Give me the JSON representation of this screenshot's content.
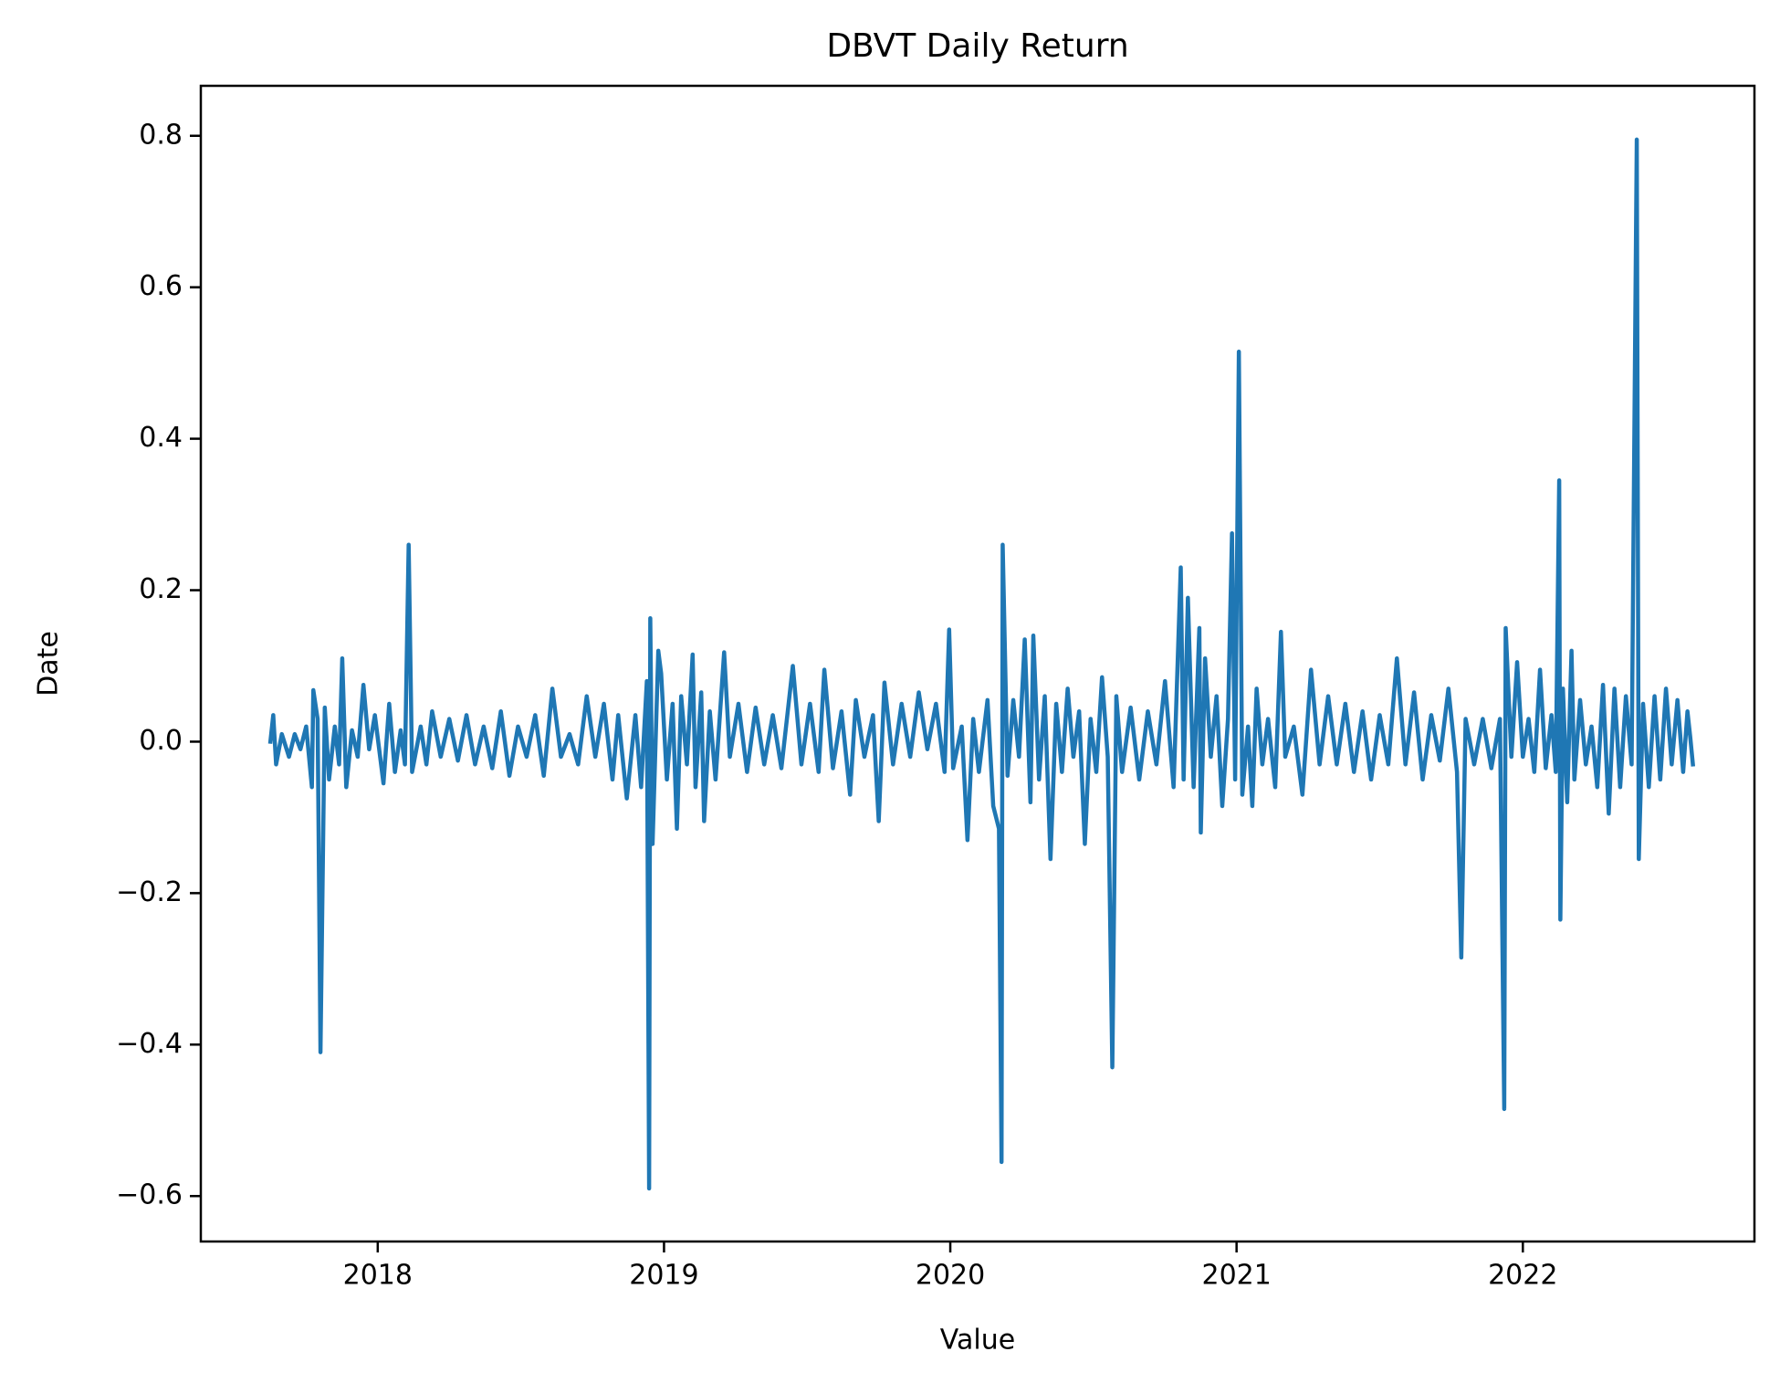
{
  "chart_data": {
    "type": "line",
    "title": "DBVT Daily Return",
    "xlabel": "Value",
    "ylabel": "Date",
    "color": "#1f77b4",
    "xlim": [
      2017.382,
      2022.809
    ],
    "xticks": [
      2018,
      2019,
      2020,
      2021,
      2022
    ],
    "ylim": [
      -0.66,
      0.866
    ],
    "yticks": [
      {
        "value": -0.6,
        "label": "−0.6"
      },
      {
        "value": -0.4,
        "label": "−0.4"
      },
      {
        "value": -0.2,
        "label": "−0.2"
      },
      {
        "value": 0,
        "label": "0.0"
      },
      0.2,
      0.4,
      0.6,
      0.8
    ],
    "x": [
      2017.625,
      2017.635,
      2017.645,
      2017.665,
      2017.69,
      2017.71,
      2017.73,
      2017.75,
      2017.77,
      2017.775,
      2017.79,
      2017.8,
      2017.815,
      2017.83,
      2017.85,
      2017.865,
      2017.876,
      2017.89,
      2017.91,
      2017.93,
      2017.95,
      2017.97,
      2017.99,
      2018.02,
      2018.04,
      2018.06,
      2018.08,
      2018.095,
      2018.108,
      2018.12,
      2018.15,
      2018.17,
      2018.19,
      2018.22,
      2018.25,
      2018.28,
      2018.31,
      2018.34,
      2018.37,
      2018.4,
      2018.43,
      2018.46,
      2018.49,
      2018.52,
      2018.55,
      2018.58,
      2018.61,
      2018.64,
      2018.67,
      2018.7,
      2018.73,
      2018.76,
      2018.79,
      2018.82,
      2018.84,
      2018.87,
      2018.9,
      2018.92,
      2018.94,
      2018.948,
      2018.952,
      2018.96,
      2018.98,
      2018.99,
      2019.01,
      2019.03,
      2019.045,
      2019.06,
      2019.08,
      2019.1,
      2019.11,
      2019.13,
      2019.14,
      2019.16,
      2019.18,
      2019.21,
      2019.23,
      2019.26,
      2019.29,
      2019.32,
      2019.35,
      2019.38,
      2019.41,
      2019.45,
      2019.48,
      2019.51,
      2019.54,
      2019.56,
      2019.59,
      2019.62,
      2019.65,
      2019.67,
      2019.7,
      2019.73,
      2019.75,
      2019.77,
      2019.8,
      2019.83,
      2019.86,
      2019.89,
      2019.92,
      2019.95,
      2019.98,
      2019.996,
      2020.01,
      2020.04,
      2020.06,
      2020.08,
      2020.1,
      2020.13,
      2020.15,
      2020.17,
      2020.179,
      2020.183,
      2020.2,
      2020.22,
      2020.24,
      2020.26,
      2020.28,
      2020.29,
      2020.31,
      2020.33,
      2020.35,
      2020.37,
      2020.39,
      2020.41,
      2020.43,
      2020.45,
      2020.47,
      2020.49,
      2020.51,
      2020.53,
      2020.55,
      2020.566,
      2020.58,
      2020.6,
      2020.63,
      2020.66,
      2020.69,
      2020.72,
      2020.75,
      2020.78,
      2020.805,
      2020.815,
      2020.83,
      2020.85,
      2020.87,
      2020.875,
      2020.89,
      2020.91,
      2020.93,
      2020.95,
      2020.97,
      2020.984,
      2020.995,
      2021.008,
      2021.02,
      2021.04,
      2021.055,
      2021.07,
      2021.09,
      2021.11,
      2021.135,
      2021.155,
      2021.17,
      2021.2,
      2021.23,
      2021.26,
      2021.29,
      2021.32,
      2021.35,
      2021.38,
      2021.41,
      2021.44,
      2021.47,
      2021.5,
      2021.53,
      2021.56,
      2021.59,
      2021.62,
      2021.65,
      2021.68,
      2021.71,
      2021.74,
      2021.77,
      2021.785,
      2021.8,
      2021.83,
      2021.86,
      2021.89,
      2021.92,
      2021.935,
      2021.94,
      2021.96,
      2021.98,
      2022.0,
      2022.02,
      2022.04,
      2022.06,
      2022.08,
      2022.1,
      2022.115,
      2022.127,
      2022.131,
      2022.14,
      2022.155,
      2022.17,
      2022.18,
      2022.2,
      2022.22,
      2022.24,
      2022.26,
      2022.28,
      2022.3,
      2022.32,
      2022.34,
      2022.36,
      2022.38,
      2022.398,
      2022.405,
      2022.42,
      2022.44,
      2022.46,
      2022.48,
      2022.5,
      2022.52,
      2022.54,
      2022.56,
      2022.575,
      2022.585,
      2022.594
    ],
    "values": [
      0,
      0.035,
      -0.03,
      0.01,
      -0.02,
      0.01,
      -0.01,
      0.02,
      -0.06,
      0.068,
      0.03,
      -0.41,
      0.045,
      -0.05,
      0.02,
      -0.03,
      0.11,
      -0.06,
      0.015,
      -0.02,
      0.075,
      -0.01,
      0.035,
      -0.055,
      0.05,
      -0.04,
      0.015,
      -0.03,
      0.26,
      -0.04,
      0.02,
      -0.03,
      0.04,
      -0.02,
      0.03,
      -0.025,
      0.035,
      -0.03,
      0.02,
      -0.035,
      0.04,
      -0.045,
      0.02,
      -0.02,
      0.035,
      -0.045,
      0.07,
      -0.02,
      0.01,
      -0.03,
      0.06,
      -0.02,
      0.05,
      -0.05,
      0.035,
      -0.075,
      0.035,
      -0.06,
      0.08,
      -0.59,
      0.163,
      -0.135,
      0.12,
      0.09,
      -0.05,
      0.05,
      -0.115,
      0.06,
      -0.03,
      0.115,
      -0.06,
      0.065,
      -0.105,
      0.04,
      -0.05,
      0.118,
      -0.02,
      0.05,
      -0.04,
      0.045,
      -0.03,
      0.035,
      -0.035,
      0.1,
      -0.03,
      0.05,
      -0.04,
      0.095,
      -0.035,
      0.04,
      -0.07,
      0.055,
      -0.02,
      0.035,
      -0.105,
      0.078,
      -0.03,
      0.05,
      -0.02,
      0.065,
      -0.01,
      0.05,
      -0.04,
      0.148,
      -0.035,
      0.02,
      -0.13,
      0.03,
      -0.04,
      0.055,
      -0.085,
      -0.115,
      -0.555,
      0.26,
      -0.045,
      0.055,
      -0.02,
      0.135,
      -0.08,
      0.14,
      -0.05,
      0.06,
      -0.155,
      0.05,
      -0.04,
      0.07,
      -0.02,
      0.04,
      -0.135,
      0.03,
      -0.04,
      0.085,
      -0.02,
      -0.43,
      0.06,
      -0.04,
      0.045,
      -0.05,
      0.04,
      -0.03,
      0.08,
      -0.06,
      0.23,
      -0.05,
      0.19,
      -0.06,
      0.15,
      -0.12,
      0.11,
      -0.02,
      0.06,
      -0.085,
      0.03,
      0.275,
      -0.05,
      0.515,
      -0.07,
      0.02,
      -0.085,
      0.07,
      -0.03,
      0.03,
      -0.06,
      0.145,
      -0.02,
      0.02,
      -0.07,
      0.095,
      -0.03,
      0.06,
      -0.03,
      0.05,
      -0.04,
      0.04,
      -0.05,
      0.035,
      -0.03,
      0.11,
      -0.03,
      0.065,
      -0.05,
      0.035,
      -0.025,
      0.07,
      -0.04,
      -0.285,
      0.03,
      -0.03,
      0.03,
      -0.035,
      0.03,
      -0.485,
      0.15,
      -0.02,
      0.105,
      -0.02,
      0.03,
      -0.04,
      0.095,
      -0.035,
      0.035,
      -0.04,
      0.345,
      -0.235,
      0.07,
      -0.08,
      0.12,
      -0.05,
      0.055,
      -0.03,
      0.02,
      -0.06,
      0.075,
      -0.095,
      0.07,
      -0.06,
      0.06,
      -0.03,
      0.795,
      -0.155,
      0.05,
      -0.06,
      0.06,
      -0.05,
      0.07,
      -0.03,
      0.055,
      -0.04,
      0.04,
      0.005,
      -0.03
    ]
  }
}
